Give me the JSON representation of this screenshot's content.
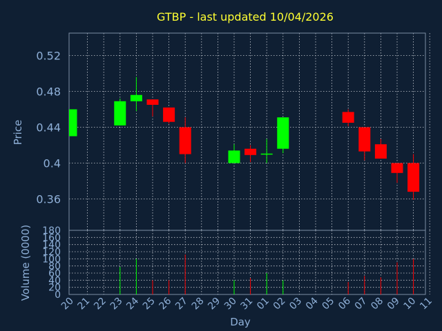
{
  "chart_data": {
    "type": "candlestick",
    "title": "GTBP - last updated 10/04/2026",
    "xlabel": "Day",
    "price_panel": {
      "ylabel": "Price",
      "ylim": [
        0.325,
        0.545
      ],
      "yticks": [
        "0.52",
        "0.48",
        "0.44",
        "0.4",
        "0.36"
      ],
      "ytick_values": [
        0.52,
        0.48,
        0.44,
        0.4,
        0.36
      ]
    },
    "volume_panel": {
      "ylabel": "Volume (0000)",
      "ylim": [
        0,
        180
      ],
      "yticks": [
        "180",
        "160",
        "140",
        "120",
        "100",
        "80",
        "60",
        "40",
        "20",
        "0"
      ],
      "ytick_values": [
        180,
        160,
        140,
        120,
        100,
        80,
        60,
        40,
        20,
        0
      ]
    },
    "x_labels": [
      "20",
      "21",
      "22",
      "23",
      "24",
      "25",
      "26",
      "27",
      "28",
      "29",
      "30",
      "31",
      "01",
      "02",
      "03",
      "04",
      "05",
      "06",
      "07",
      "08",
      "09",
      "10",
      "11"
    ],
    "candles": [
      {
        "idx": 0,
        "open": 0.43,
        "high": 0.46,
        "low": 0.43,
        "close": 0.46,
        "volume": 0
      },
      {
        "idx": 3,
        "open": 0.442,
        "high": 0.472,
        "low": 0.442,
        "close": 0.469,
        "volume": 77
      },
      {
        "idx": 4,
        "open": 0.469,
        "high": 0.496,
        "low": 0.458,
        "close": 0.476,
        "volume": 100
      },
      {
        "idx": 5,
        "open": 0.471,
        "high": 0.471,
        "low": 0.452,
        "close": 0.465,
        "volume": 40
      },
      {
        "idx": 6,
        "open": 0.462,
        "high": 0.462,
        "low": 0.444,
        "close": 0.446,
        "volume": 40
      },
      {
        "idx": 7,
        "open": 0.44,
        "high": 0.451,
        "low": 0.4,
        "close": 0.41,
        "volume": 112
      },
      {
        "idx": 10,
        "open": 0.4,
        "high": 0.421,
        "low": 0.4,
        "close": 0.414,
        "volume": 40
      },
      {
        "idx": 11,
        "open": 0.416,
        "high": 0.42,
        "low": 0.401,
        "close": 0.409,
        "volume": 46
      },
      {
        "idx": 12,
        "open": 0.41,
        "high": 0.427,
        "low": 0.4,
        "close": 0.41,
        "volume": 60
      },
      {
        "idx": 13,
        "open": 0.416,
        "high": 0.451,
        "low": 0.411,
        "close": 0.451,
        "volume": 40
      },
      {
        "idx": 17,
        "open": 0.457,
        "high": 0.46,
        "low": 0.441,
        "close": 0.445,
        "volume": 35
      },
      {
        "idx": 18,
        "open": 0.44,
        "high": 0.44,
        "low": 0.403,
        "close": 0.413,
        "volume": 52
      },
      {
        "idx": 19,
        "open": 0.421,
        "high": 0.427,
        "low": 0.405,
        "close": 0.405,
        "volume": 48
      },
      {
        "idx": 20,
        "open": 0.4,
        "high": 0.4,
        "low": 0.378,
        "close": 0.389,
        "volume": 90
      },
      {
        "idx": 21,
        "open": 0.4,
        "high": 0.41,
        "low": 0.359,
        "close": 0.368,
        "volume": 100
      }
    ],
    "colors": {
      "background": "#0f1f33",
      "up": "#00ff00",
      "down": "#ff0000",
      "grid": "#c8ccd4",
      "frame": "#7d8fa6",
      "tick_text": "#8fb0d8",
      "title_text": "#ffff33"
    },
    "grid": true
  }
}
